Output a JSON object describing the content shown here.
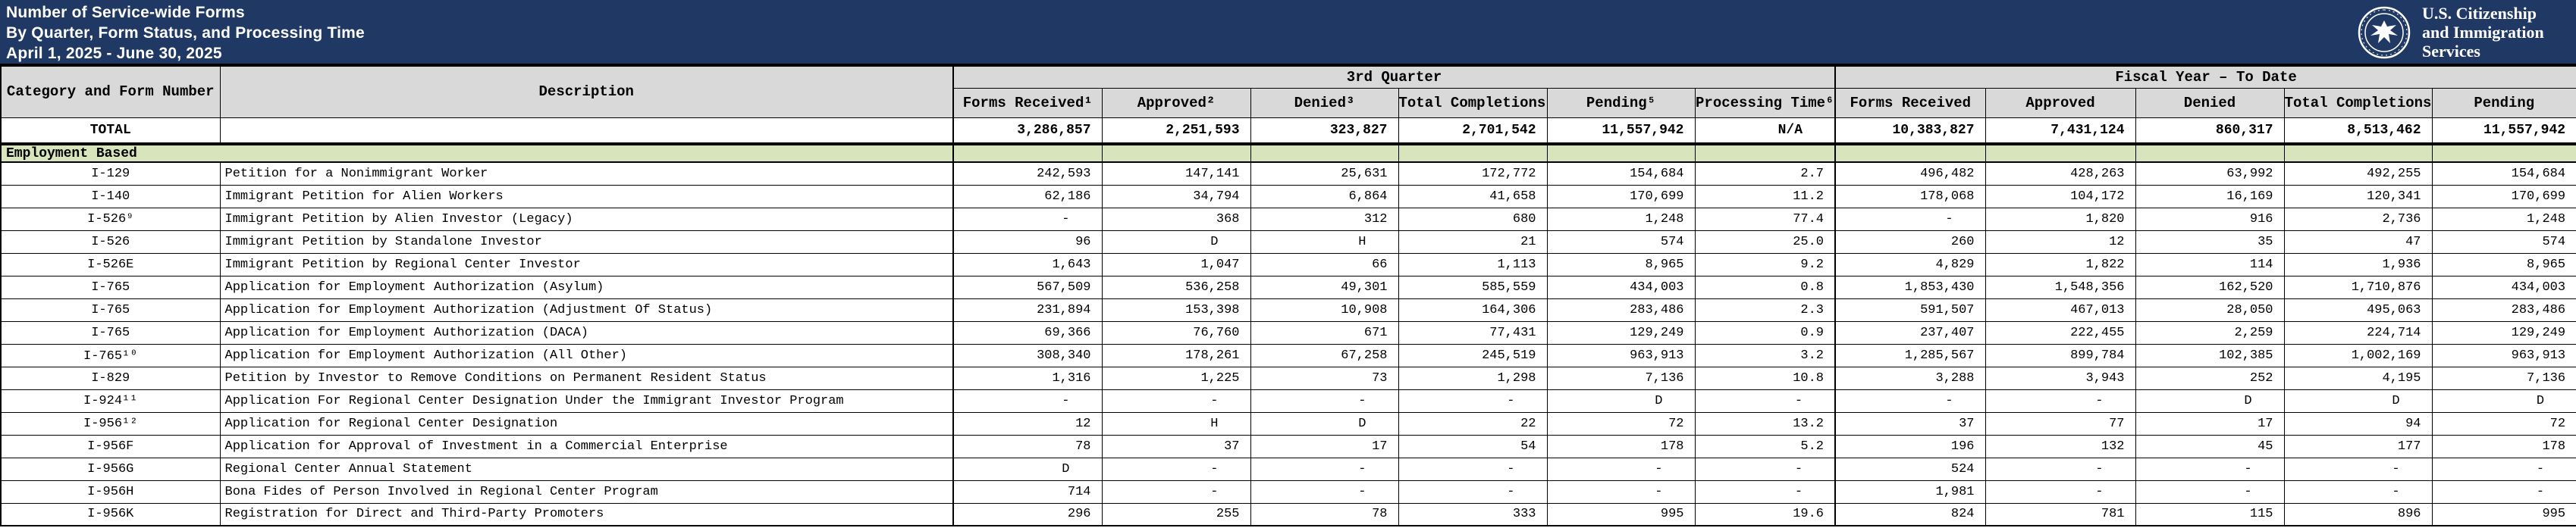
{
  "banner": {
    "title_line1": "Number of Service-wide Forms",
    "title_line2": "By Quarter, Form Status, and Processing Time",
    "title_line3": "April 1, 2025 - June 30, 2025",
    "agency_line1": "U.S. Citizenship",
    "agency_line2": "and Immigration",
    "agency_line3": "Services",
    "seal": "dhs-seal-icon"
  },
  "colors": {
    "navy": "#1F3864",
    "header_gray": "#D9D9D9",
    "section_green": "#D8E4BC",
    "border_black": "#000000"
  },
  "table": {
    "cat_header": "Category and Form Number",
    "desc_header": "Description",
    "group_q3": "3rd Quarter",
    "group_fy": "Fiscal Year – To Date",
    "q3_cols": [
      "Forms Received¹",
      "Approved²",
      "Denied³",
      "Total Completions⁴",
      "Pending⁵",
      "Processing Time⁶"
    ],
    "fy_cols": [
      "Forms Received",
      "Approved",
      "Denied",
      "Total Completions",
      "Pending"
    ],
    "total_row": {
      "label": "TOTAL",
      "desc": "",
      "values": [
        "3,286,857",
        "2,251,593",
        "323,827",
        "2,701,542",
        "11,557,942",
        "N/A",
        "10,383,827",
        "7,431,124",
        "860,317",
        "8,513,462",
        "11,557,942"
      ]
    },
    "section_label": "Employment Based",
    "rows": [
      {
        "form": "I-129",
        "desc": "Petition for a Nonimmigrant Worker",
        "values": [
          "242,593",
          "147,141",
          "25,631",
          "172,772",
          "154,684",
          "2.7",
          "496,482",
          "428,263",
          "63,992",
          "492,255",
          "154,684"
        ]
      },
      {
        "form": "I-140",
        "desc": "Immigrant Petition for Alien Workers",
        "values": [
          "62,186",
          "34,794",
          "6,864",
          "41,658",
          "170,699",
          "11.2",
          "178,068",
          "104,172",
          "16,169",
          "120,341",
          "170,699"
        ]
      },
      {
        "form": "I-526⁹",
        "desc": "Immigrant Petition by Alien Investor (Legacy)",
        "values": [
          "-",
          "368",
          "312",
          "680",
          "1,248",
          "77.4",
          "-",
          "1,820",
          "916",
          "2,736",
          "1,248"
        ]
      },
      {
        "form": "I-526",
        "desc": "Immigrant Petition by Standalone Investor",
        "values": [
          "96",
          "D",
          "H",
          "21",
          "574",
          "25.0",
          "260",
          "12",
          "35",
          "47",
          "574"
        ]
      },
      {
        "form": "I-526E",
        "desc": "Immigrant Petition by Regional Center Investor",
        "values": [
          "1,643",
          "1,047",
          "66",
          "1,113",
          "8,965",
          "9.2",
          "4,829",
          "1,822",
          "114",
          "1,936",
          "8,965"
        ]
      },
      {
        "form": "I-765",
        "desc": "Application for Employment Authorization (Asylum)",
        "values": [
          "567,509",
          "536,258",
          "49,301",
          "585,559",
          "434,003",
          "0.8",
          "1,853,430",
          "1,548,356",
          "162,520",
          "1,710,876",
          "434,003"
        ]
      },
      {
        "form": "I-765",
        "desc": "Application for Employment Authorization (Adjustment Of Status)",
        "values": [
          "231,894",
          "153,398",
          "10,908",
          "164,306",
          "283,486",
          "2.3",
          "591,507",
          "467,013",
          "28,050",
          "495,063",
          "283,486"
        ]
      },
      {
        "form": "I-765",
        "desc": "Application for Employment Authorization (DACA)",
        "values": [
          "69,366",
          "76,760",
          "671",
          "77,431",
          "129,249",
          "0.9",
          "237,407",
          "222,455",
          "2,259",
          "224,714",
          "129,249"
        ]
      },
      {
        "form": "I-765¹⁰",
        "desc": "Application for Employment Authorization (All Other)",
        "values": [
          "308,340",
          "178,261",
          "67,258",
          "245,519",
          "963,913",
          "3.2",
          "1,285,567",
          "899,784",
          "102,385",
          "1,002,169",
          "963,913"
        ]
      },
      {
        "form": "I-829",
        "desc": "Petition by Investor to Remove Conditions on Permanent Resident Status",
        "values": [
          "1,316",
          "1,225",
          "73",
          "1,298",
          "7,136",
          "10.8",
          "3,288",
          "3,943",
          "252",
          "4,195",
          "7,136"
        ]
      },
      {
        "form": "I-924¹¹",
        "desc": "Application For Regional Center Designation Under the Immigrant Investor Program",
        "values": [
          "-",
          "-",
          "-",
          "-",
          "D",
          "-",
          "-",
          "-",
          "D",
          "D",
          "D"
        ]
      },
      {
        "form": "I-956¹²",
        "desc": "Application for Regional Center Designation",
        "values": [
          "12",
          "H",
          "D",
          "22",
          "72",
          "13.2",
          "37",
          "77",
          "17",
          "94",
          "72"
        ]
      },
      {
        "form": "I-956F",
        "desc": "Application for Approval of Investment in a Commercial Enterprise",
        "values": [
          "78",
          "37",
          "17",
          "54",
          "178",
          "5.2",
          "196",
          "132",
          "45",
          "177",
          "178"
        ]
      },
      {
        "form": "I-956G",
        "desc": "Regional Center Annual Statement",
        "values": [
          "D",
          "-",
          "-",
          "-",
          "-",
          "-",
          "524",
          "-",
          "-",
          "-",
          "-"
        ]
      },
      {
        "form": "I-956H",
        "desc": "Bona Fides of Person Involved in Regional Center Program",
        "values": [
          "714",
          "-",
          "-",
          "-",
          "-",
          "-",
          "1,981",
          "-",
          "-",
          "-",
          "-"
        ]
      },
      {
        "form": "I-956K",
        "desc": "Registration for Direct and Third-Party Promoters",
        "values": [
          "296",
          "255",
          "78",
          "333",
          "995",
          "19.6",
          "824",
          "781",
          "115",
          "896",
          "995"
        ]
      }
    ]
  }
}
